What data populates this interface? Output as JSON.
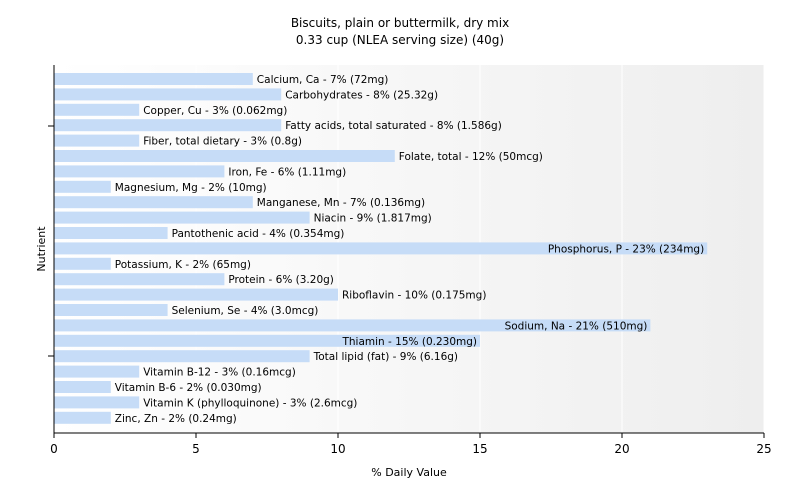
{
  "chart_data": {
    "type": "bar",
    "orientation": "horizontal",
    "title": "Biscuits, plain or buttermilk, dry mix",
    "subtitle": "0.33 cup (NLEA serving size) (40g)",
    "xlabel": "% Daily Value",
    "ylabel": "Nutrient",
    "xlim": [
      0,
      25
    ],
    "xticks": [
      "0",
      "5",
      "10",
      "15",
      "20",
      "25"
    ],
    "grid": true,
    "bar_color": "#c6dcf7",
    "bars": [
      {
        "label": "Calcium, Ca - 7% (72mg)",
        "value": 7
      },
      {
        "label": "Carbohydrates - 8% (25.32g)",
        "value": 8
      },
      {
        "label": "Copper, Cu - 3% (0.062mg)",
        "value": 3
      },
      {
        "label": "Fatty acids, total saturated - 8% (1.586g)",
        "value": 8
      },
      {
        "label": "Fiber, total dietary - 3% (0.8g)",
        "value": 3
      },
      {
        "label": "Folate, total - 12% (50mcg)",
        "value": 12
      },
      {
        "label": "Iron, Fe - 6% (1.11mg)",
        "value": 6
      },
      {
        "label": "Magnesium, Mg - 2% (10mg)",
        "value": 2
      },
      {
        "label": "Manganese, Mn - 7% (0.136mg)",
        "value": 7
      },
      {
        "label": "Niacin - 9% (1.817mg)",
        "value": 9
      },
      {
        "label": "Pantothenic acid - 4% (0.354mg)",
        "value": 4
      },
      {
        "label": "Phosphorus, P - 23% (234mg)",
        "value": 23
      },
      {
        "label": "Potassium, K - 2% (65mg)",
        "value": 2
      },
      {
        "label": "Protein - 6% (3.20g)",
        "value": 6
      },
      {
        "label": "Riboflavin - 10% (0.175mg)",
        "value": 10
      },
      {
        "label": "Selenium, Se - 4% (3.0mcg)",
        "value": 4
      },
      {
        "label": "Sodium, Na - 21% (510mg)",
        "value": 21
      },
      {
        "label": "Thiamin - 15% (0.230mg)",
        "value": 15
      },
      {
        "label": "Total lipid (fat) - 9% (6.16g)",
        "value": 9
      },
      {
        "label": "Vitamin B-12 - 3% (0.16mcg)",
        "value": 3
      },
      {
        "label": "Vitamin B-6 - 2% (0.030mg)",
        "value": 2
      },
      {
        "label": "Vitamin K (phylloquinone) - 3% (2.6mcg)",
        "value": 3
      },
      {
        "label": "Zinc, Zn - 2% (0.24mg)",
        "value": 2
      }
    ]
  }
}
